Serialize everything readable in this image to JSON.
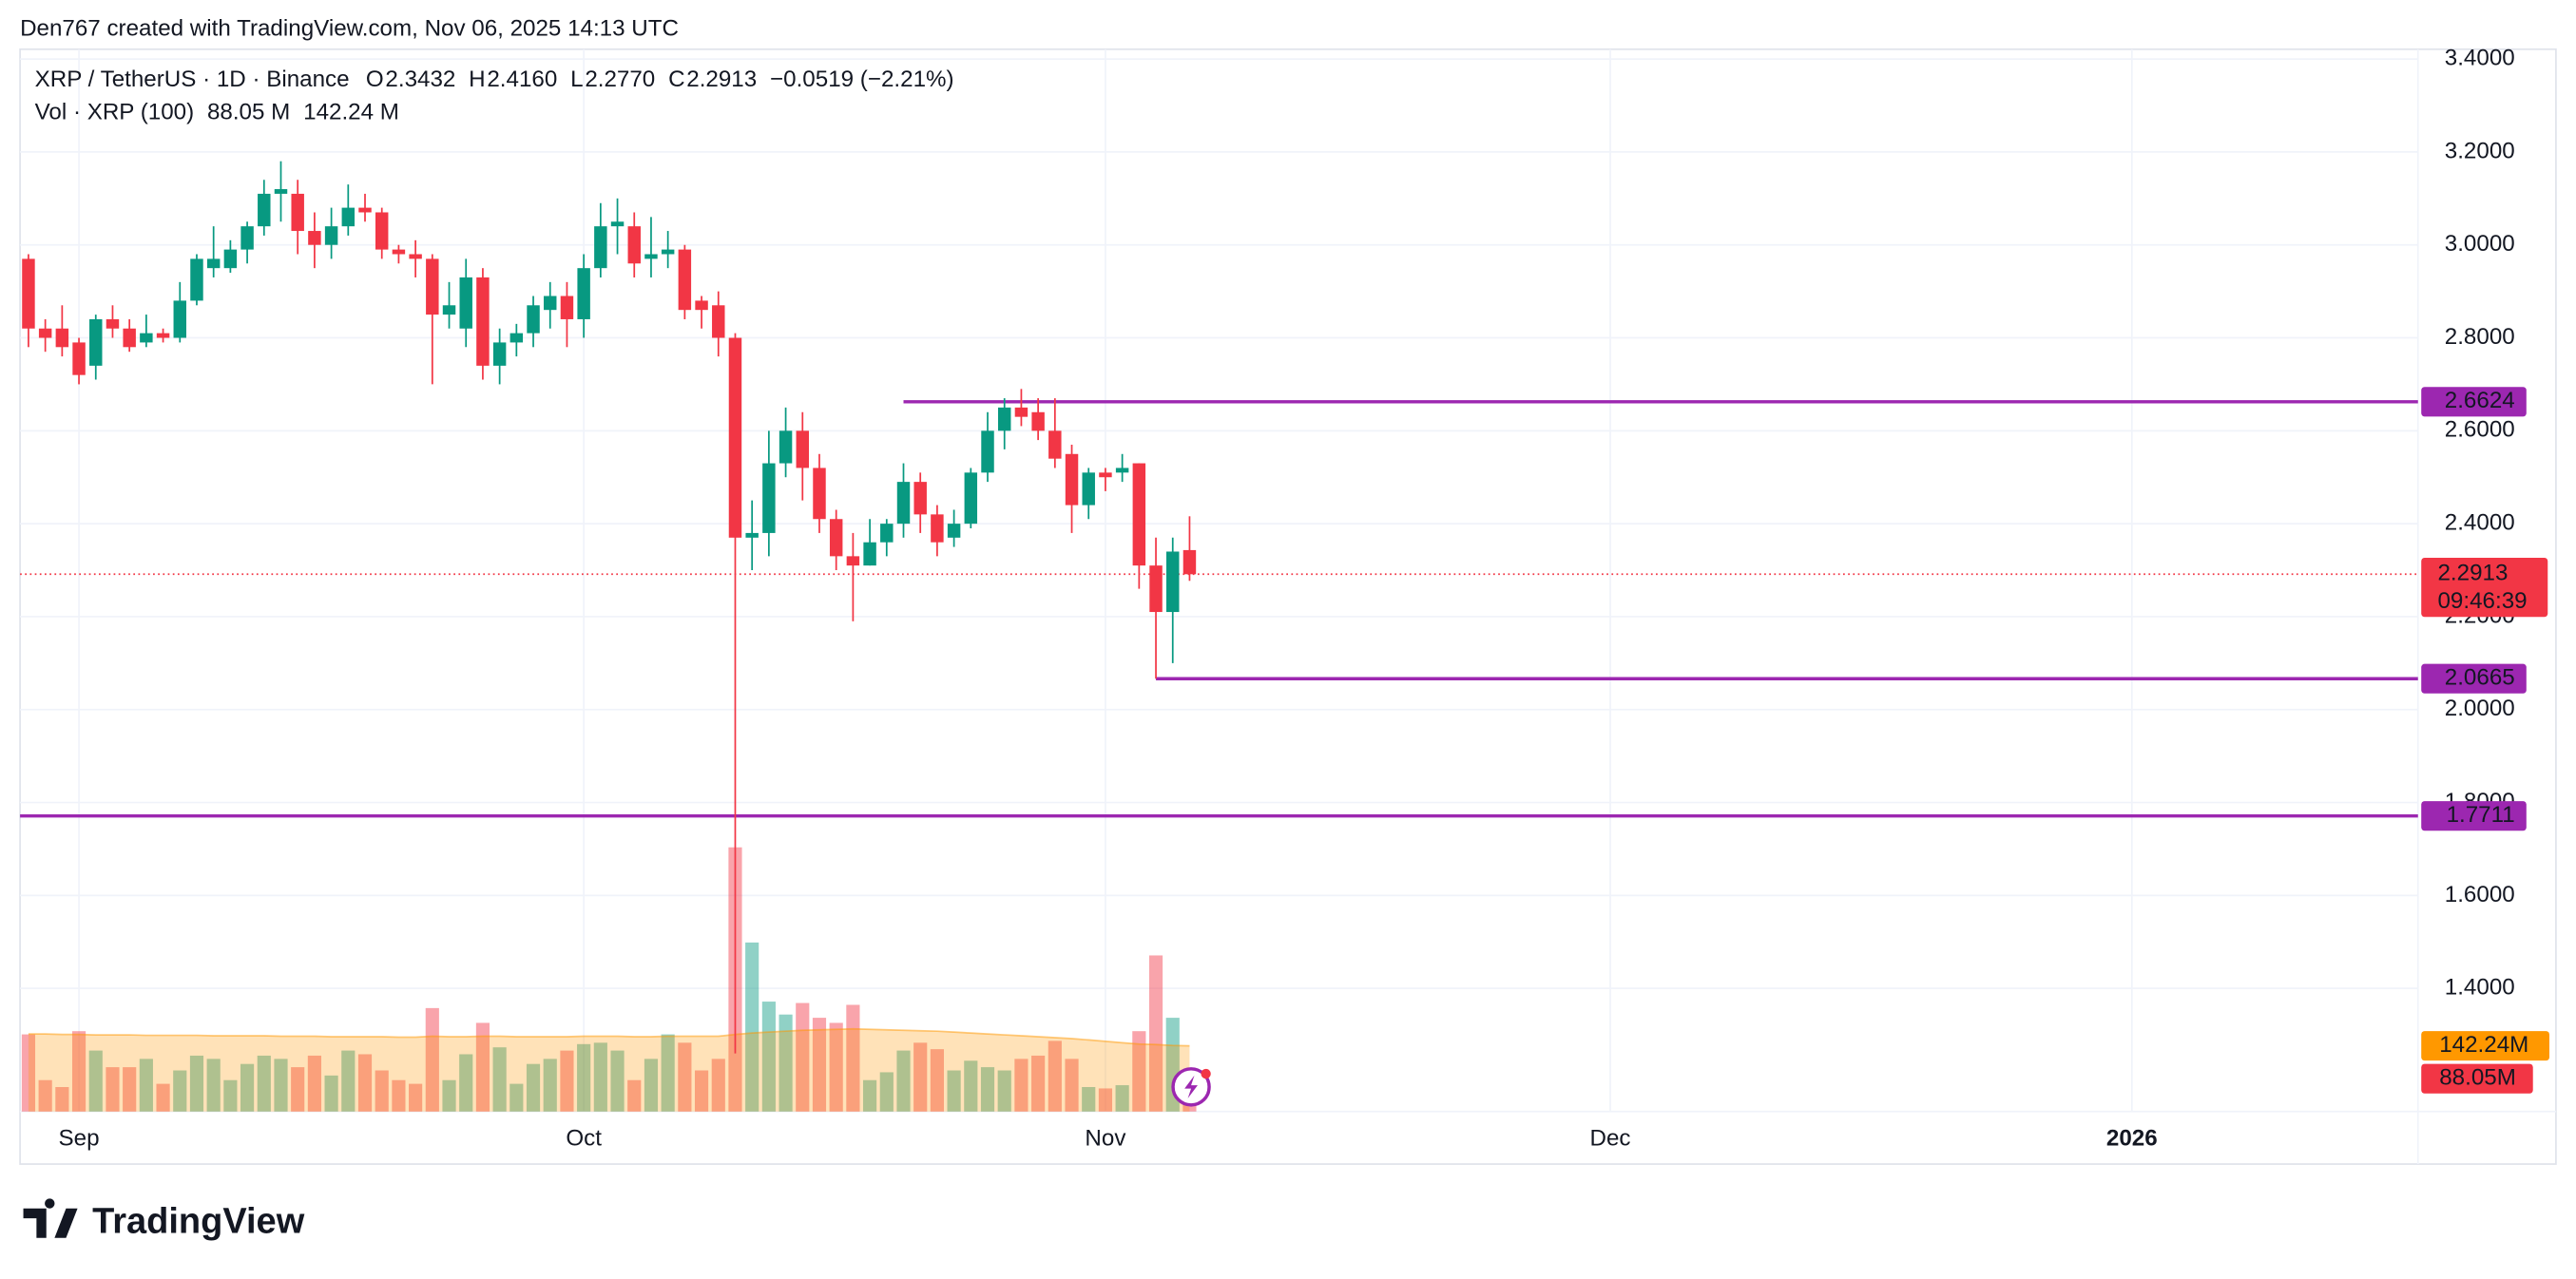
{
  "header": "Den767 created with TradingView.com, Nov 06, 2025 14:13 UTC",
  "logo": "TradingView",
  "chart_data": {
    "type": "candlestick",
    "symbol": "XRP / TetherUS · 1D · Binance",
    "ohlc_legend": [
      {
        "key": "O",
        "text": "2.3432"
      },
      {
        "key": "H",
        "text": "2.4160"
      },
      {
        "key": "L",
        "text": "2.2770"
      },
      {
        "key": "C",
        "text": "2.2913"
      }
    ],
    "change": "−0.0519 (−2.21%)",
    "volume_legend": {
      "name": "Vol · XRP (100)",
      "volume": "88.05 M",
      "ma": "142.24 M"
    },
    "up_color": "#089981",
    "down_color": "#f23645",
    "level_color": "#9c27b0",
    "ma_color": "#ff9800",
    "open": [
      2.97,
      2.82,
      2.82,
      2.79,
      2.74,
      2.84,
      2.82,
      2.79,
      2.81,
      2.8,
      2.88,
      2.95,
      2.95,
      2.99,
      3.04,
      3.11,
      3.11,
      3.03,
      3.0,
      3.04,
      3.08,
      3.07,
      2.99,
      2.98,
      2.97,
      2.85,
      2.82,
      2.93,
      2.74,
      2.79,
      2.81,
      2.86,
      2.89,
      2.84,
      2.95,
      3.04,
      3.04,
      2.97,
      2.98,
      2.99,
      2.88,
      2.87,
      2.8,
      2.37,
      2.38,
      2.53,
      2.6,
      2.52,
      2.41,
      2.33,
      2.31,
      2.36,
      2.4,
      2.49,
      2.42,
      2.37,
      2.4,
      2.51,
      2.6,
      2.65,
      2.64,
      2.6,
      2.55,
      2.44,
      2.51,
      2.51,
      2.53,
      2.31,
      2.21,
      2.3432
    ],
    "high": [
      2.98,
      2.84,
      2.87,
      2.8,
      2.85,
      2.87,
      2.84,
      2.85,
      2.82,
      2.92,
      2.98,
      3.04,
      3.01,
      3.05,
      3.14,
      3.18,
      3.14,
      3.07,
      3.08,
      3.13,
      3.11,
      3.08,
      3.0,
      3.01,
      2.98,
      2.92,
      2.97,
      2.95,
      2.82,
      2.83,
      2.89,
      2.92,
      2.92,
      2.98,
      3.09,
      3.1,
      3.07,
      3.06,
      3.03,
      3.0,
      2.89,
      2.9,
      2.81,
      2.45,
      2.6,
      2.65,
      2.64,
      2.55,
      2.43,
      2.38,
      2.41,
      2.41,
      2.53,
      2.51,
      2.44,
      2.43,
      2.52,
      2.64,
      2.67,
      2.69,
      2.67,
      2.67,
      2.57,
      2.52,
      2.52,
      2.55,
      2.53,
      2.37,
      2.37,
      2.416
    ],
    "low": [
      2.78,
      2.77,
      2.76,
      2.7,
      2.71,
      2.8,
      2.77,
      2.78,
      2.79,
      2.79,
      2.87,
      2.93,
      2.94,
      2.96,
      3.02,
      3.05,
      2.98,
      2.95,
      2.97,
      3.02,
      3.05,
      2.97,
      2.96,
      2.93,
      2.7,
      2.82,
      2.78,
      2.71,
      2.7,
      2.76,
      2.78,
      2.82,
      2.78,
      2.8,
      2.93,
      2.98,
      2.93,
      2.93,
      2.95,
      2.84,
      2.82,
      2.76,
      1.26,
      2.3,
      2.33,
      2.5,
      2.45,
      2.38,
      2.3,
      2.19,
      2.31,
      2.33,
      2.37,
      2.38,
      2.33,
      2.35,
      2.39,
      2.49,
      2.56,
      2.61,
      2.58,
      2.52,
      2.38,
      2.41,
      2.47,
      2.49,
      2.26,
      2.0665,
      2.1,
      2.277
    ],
    "close": [
      2.82,
      2.8,
      2.78,
      2.72,
      2.84,
      2.82,
      2.78,
      2.81,
      2.8,
      2.88,
      2.97,
      2.97,
      2.99,
      3.04,
      3.11,
      3.12,
      3.03,
      3.0,
      3.04,
      3.08,
      3.07,
      2.99,
      2.98,
      2.97,
      2.85,
      2.87,
      2.93,
      2.74,
      2.79,
      2.81,
      2.87,
      2.89,
      2.84,
      2.95,
      3.04,
      3.05,
      2.96,
      2.98,
      2.99,
      2.86,
      2.86,
      2.8,
      2.37,
      2.38,
      2.53,
      2.6,
      2.52,
      2.41,
      2.33,
      2.31,
      2.36,
      2.4,
      2.49,
      2.42,
      2.36,
      2.4,
      2.51,
      2.6,
      2.65,
      2.63,
      2.6,
      2.54,
      2.44,
      2.51,
      2.5,
      2.52,
      2.31,
      2.21,
      2.34,
      2.2913
    ],
    "volume": [
      167,
      68,
      53,
      174,
      132,
      96,
      96,
      114,
      60,
      89,
      121,
      114,
      68,
      103,
      121,
      114,
      96,
      121,
      78,
      132,
      124,
      89,
      68,
      60,
      224,
      68,
      124,
      192,
      139,
      60,
      103,
      114,
      132,
      146,
      149,
      132,
      68,
      114,
      167,
      149,
      89,
      114,
      572,
      366,
      238,
      210,
      235,
      203,
      192,
      231,
      68,
      85,
      132,
      149,
      135,
      89,
      110,
      96,
      89,
      114,
      121,
      153,
      114,
      53,
      50,
      57,
      174,
      338,
      203,
      88.05
    ],
    "volume_ma": [
      168,
      168,
      167,
      167,
      166,
      166,
      166,
      165,
      165,
      165,
      165,
      164,
      164,
      164,
      164,
      163,
      163,
      163,
      162,
      162,
      162,
      162,
      161,
      161,
      163,
      162,
      162,
      163,
      163,
      162,
      162,
      162,
      162,
      163,
      163,
      163,
      162,
      162,
      163,
      163,
      163,
      163,
      167,
      170,
      172,
      174,
      176,
      177,
      178,
      179,
      178,
      177,
      176,
      175,
      174,
      172,
      170,
      168,
      166,
      164,
      162,
      160,
      158,
      155,
      152,
      149,
      146,
      145,
      143,
      142.24
    ],
    "volume_lim": [
      0,
      2300
    ],
    "volume_tags": {
      "ma": "142.24M",
      "volume": "88.05M"
    },
    "xlim": [
      -0.5,
      142
    ],
    "xticks": [
      {
        "value": 3,
        "label": "Sep"
      },
      {
        "value": 33,
        "label": "Oct"
      },
      {
        "value": 64,
        "label": "Nov"
      },
      {
        "value": 94,
        "label": "Dec"
      },
      {
        "value": 125,
        "label": "2026"
      }
    ],
    "ylim": [
      1.135,
      3.421
    ],
    "yticks": [
      {
        "value": 1.4,
        "label": "1.4000"
      },
      {
        "value": 1.6,
        "label": "1.6000"
      },
      {
        "value": 1.8,
        "label": "1.8000"
      },
      {
        "value": 2.0,
        "label": "2.0000"
      },
      {
        "value": 2.2,
        "label": "2.2000"
      },
      {
        "value": 2.4,
        "label": "2.4000"
      },
      {
        "value": 2.6,
        "label": "2.6000"
      },
      {
        "value": 2.8,
        "label": "2.8000"
      },
      {
        "value": 3.0,
        "label": "3.0000"
      },
      {
        "value": 3.2,
        "label": "3.2000"
      },
      {
        "value": 3.4,
        "label": "3.4000"
      }
    ],
    "grid": true,
    "levels": [
      {
        "value": 2.6624,
        "label": "2.6624",
        "start": 52
      },
      {
        "value": 2.0665,
        "label": "2.0665",
        "start": 67
      },
      {
        "value": 1.7711,
        "label": "1.7711"
      }
    ],
    "last_price": {
      "value": 2.2913,
      "label": "2.2913",
      "countdown": "09:46:39"
    }
  }
}
